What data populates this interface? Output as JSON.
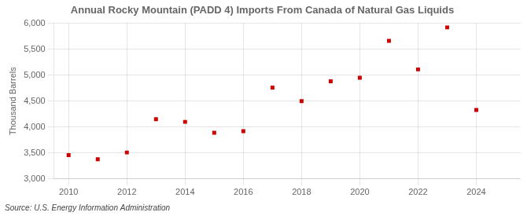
{
  "chart_data": {
    "type": "scatter",
    "title": "Annual Rocky Mountain (PADD 4) Imports From Canada of Natural Gas Liquids",
    "ylabel": "Thousand Barrels",
    "source": "Source: U.S. Energy Information Administration",
    "x": [
      2010,
      2011,
      2012,
      2013,
      2014,
      2015,
      2016,
      2017,
      2018,
      2019,
      2020,
      2021,
      2022,
      2023,
      2024
    ],
    "values": [
      3460,
      3380,
      3510,
      4150,
      4100,
      3890,
      3920,
      4760,
      4500,
      4880,
      4950,
      5660,
      5110,
      5920,
      4330
    ],
    "color": "#CC0000",
    "marker": "square",
    "xlim": [
      2009.5,
      2025.5
    ],
    "xticks": [
      2010,
      2012,
      2014,
      2016,
      2018,
      2020,
      2022,
      2024
    ],
    "ylim": [
      3000,
      6000
    ],
    "yticks": [
      {
        "value": 3000,
        "label": "3,000"
      },
      {
        "value": 3500,
        "label": "3,500"
      },
      {
        "value": 4000,
        "label": "4,000"
      },
      {
        "value": 4500,
        "label": "4,500"
      },
      {
        "value": 5000,
        "label": "5,000"
      },
      {
        "value": 5500,
        "label": "5,500"
      },
      {
        "value": 6000,
        "label": "6,000"
      }
    ],
    "grid": true
  }
}
